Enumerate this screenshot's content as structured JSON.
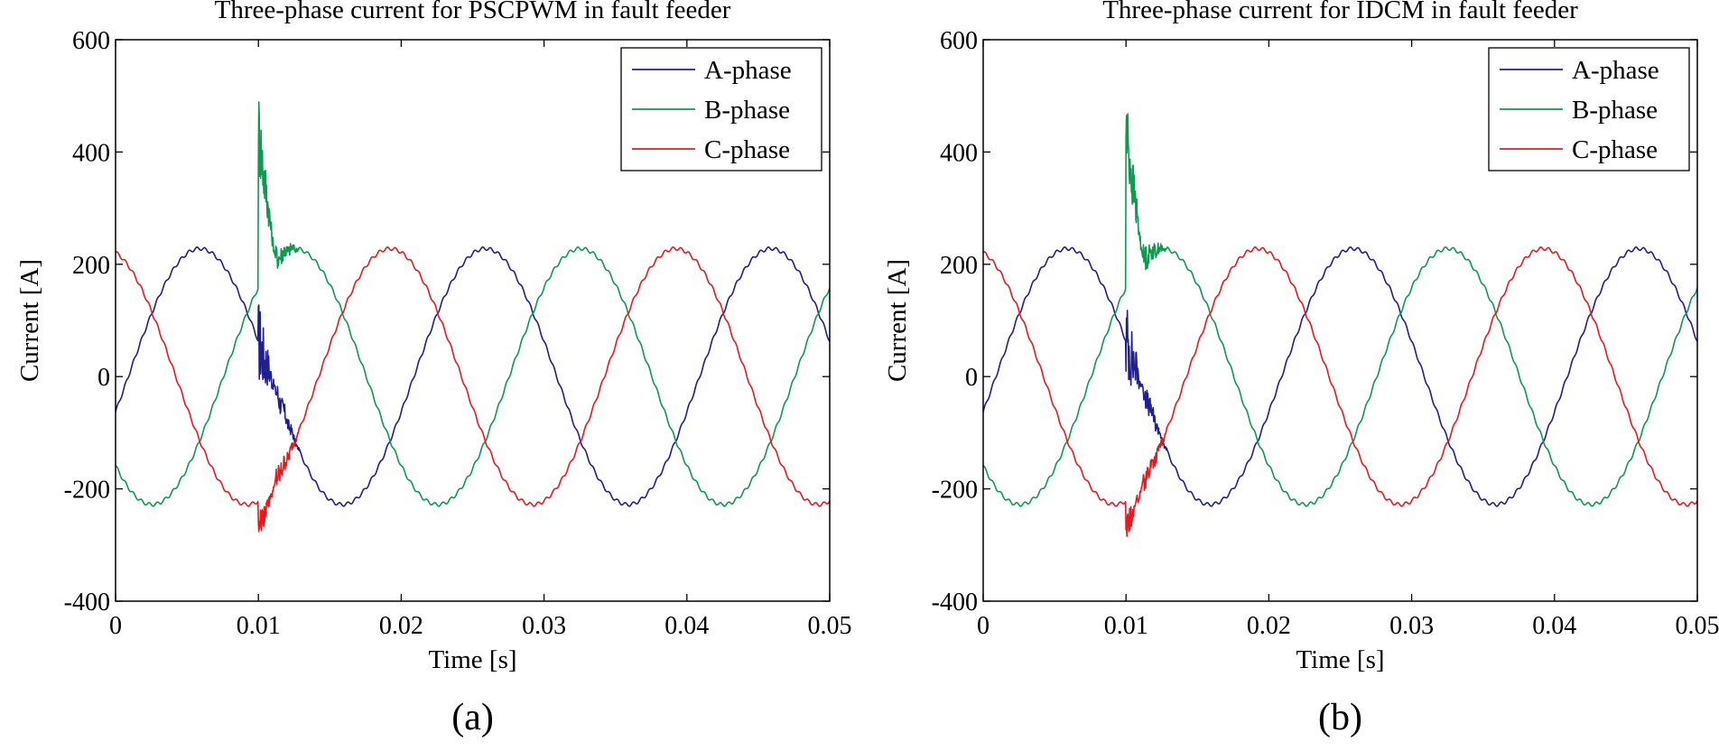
{
  "chart_data": [
    {
      "type": "line",
      "title": "Three-phase current for PSCPWM in fault feeder",
      "xlabel": "Time [s]",
      "ylabel": "Current [A]",
      "panel_label": "(a)",
      "xlim": [
        0,
        0.05
      ],
      "ylim": [
        -400,
        600
      ],
      "x_ticks": [
        0,
        0.01,
        0.02,
        0.03,
        0.04,
        0.05
      ],
      "x_tick_labels": [
        "0",
        "0.01",
        "0.02",
        "0.03",
        "0.04",
        "0.05"
      ],
      "y_ticks": [
        -400,
        -200,
        0,
        200,
        400,
        600
      ],
      "y_tick_labels": [
        "-400",
        "-200",
        "0",
        "200",
        "400",
        "600"
      ],
      "grid": false,
      "legend_position": "top-right",
      "series": [
        {
          "name": "A-phase",
          "color": "#1f1f8f",
          "amplitude": 228,
          "frequency_hz": 50,
          "phase_deg": -16,
          "fault_time": 0.01
        },
        {
          "name": "B-phase",
          "color": "#0c9a4e",
          "amplitude": 228,
          "frequency_hz": 50,
          "phase_deg": -136,
          "fault_time": 0.01,
          "fault_peak": 525
        },
        {
          "name": "C-phase",
          "color": "#e8191e",
          "amplitude": 228,
          "frequency_hz": 50,
          "phase_deg": 104,
          "fault_time": 0.01,
          "fault_min": -290
        }
      ]
    },
    {
      "type": "line",
      "title": "Three-phase current for IDCM in fault feeder",
      "xlabel": "Time [s]",
      "ylabel": "Current [A]",
      "panel_label": "(b)",
      "xlim": [
        0,
        0.05
      ],
      "ylim": [
        -400,
        600
      ],
      "x_ticks": [
        0,
        0.01,
        0.02,
        0.03,
        0.04,
        0.05
      ],
      "x_tick_labels": [
        "0",
        "0.01",
        "0.02",
        "0.03",
        "0.04",
        "0.05"
      ],
      "y_ticks": [
        -400,
        -200,
        0,
        200,
        400,
        600
      ],
      "y_tick_labels": [
        "-400",
        "-200",
        "0",
        "200",
        "400",
        "600"
      ],
      "grid": false,
      "legend_position": "top-right",
      "series": [
        {
          "name": "A-phase",
          "color": "#1f1f8f",
          "amplitude": 228,
          "frequency_hz": 50,
          "phase_deg": -16,
          "fault_time": 0.01
        },
        {
          "name": "B-phase",
          "color": "#0c9a4e",
          "amplitude": 228,
          "frequency_hz": 50,
          "phase_deg": -136,
          "fault_time": 0.01,
          "fault_peak": 525
        },
        {
          "name": "C-phase",
          "color": "#e8191e",
          "amplitude": 228,
          "frequency_hz": 50,
          "phase_deg": 104,
          "fault_time": 0.01,
          "fault_min": -290
        }
      ]
    }
  ]
}
